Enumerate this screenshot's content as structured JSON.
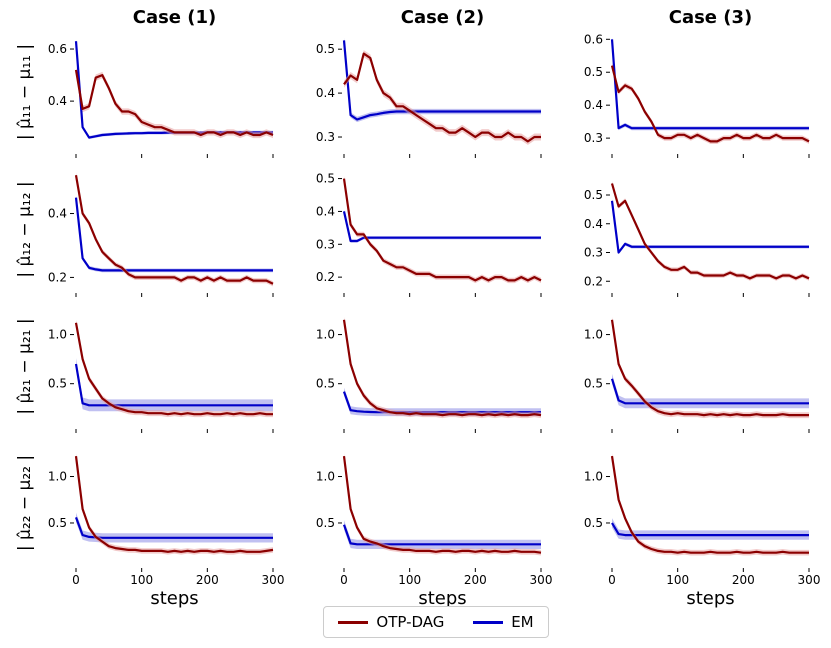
{
  "colors": {
    "otp": "#8b0000",
    "otp_band": "#e8a0a0",
    "em": "#0000c8",
    "em_band": "#8c8ce6"
  },
  "chart_data": {
    "type": "line",
    "column_titles": [
      "Case (1)",
      "Case (2)",
      "Case (3)"
    ],
    "row_labels": [
      "| μ̂₁₁ − μ₁₁ |",
      "| μ̂₁₂ − μ₁₂ |",
      "| μ̂₂₁ − μ₂₁ |",
      "| μ̂₂₂ − μ₂₂ |"
    ],
    "xlabel": "steps",
    "xlim": [
      0,
      300
    ],
    "xticks": [
      0,
      100,
      200,
      300
    ],
    "legend": [
      "OTP-DAG",
      "EM"
    ],
    "legend_position": "bottom-center",
    "panels": [
      [
        {
          "ylim": [
            0.22,
            0.65
          ],
          "yticks": [
            0.4,
            0.6
          ],
          "ytick_labels": [
            "0.4",
            "0.6"
          ],
          "otp": [
            0.52,
            0.37,
            0.38,
            0.49,
            0.5,
            0.45,
            0.39,
            0.36,
            0.36,
            0.35,
            0.32,
            0.31,
            0.3,
            0.3,
            0.29,
            0.28,
            0.28,
            0.28,
            0.28,
            0.27,
            0.28,
            0.28,
            0.27,
            0.28,
            0.28,
            0.27,
            0.28,
            0.27,
            0.27,
            0.28,
            0.27
          ],
          "em": [
            0.63,
            0.3,
            0.26,
            0.265,
            0.27,
            0.272,
            0.274,
            0.275,
            0.276,
            0.277,
            0.277,
            0.278,
            0.278,
            0.278,
            0.279,
            0.279,
            0.279,
            0.279,
            0.279,
            0.279,
            0.28,
            0.28,
            0.28,
            0.28,
            0.28,
            0.28,
            0.28,
            0.28,
            0.28,
            0.28,
            0.28
          ],
          "otp_band": 0.012,
          "em_band": 0.006
        },
        {
          "ylim": [
            0.275,
            0.53
          ],
          "yticks": [
            0.3,
            0.4,
            0.5
          ],
          "ytick_labels": [
            "0.3",
            "0.4",
            "0.5"
          ],
          "otp": [
            0.42,
            0.44,
            0.43,
            0.49,
            0.48,
            0.43,
            0.4,
            0.39,
            0.37,
            0.37,
            0.36,
            0.35,
            0.34,
            0.33,
            0.32,
            0.32,
            0.31,
            0.31,
            0.32,
            0.31,
            0.3,
            0.31,
            0.31,
            0.3,
            0.3,
            0.31,
            0.3,
            0.3,
            0.29,
            0.3,
            0.3
          ],
          "em": [
            0.52,
            0.35,
            0.34,
            0.345,
            0.35,
            0.352,
            0.355,
            0.357,
            0.358,
            0.358,
            0.358,
            0.358,
            0.358,
            0.358,
            0.358,
            0.358,
            0.358,
            0.358,
            0.358,
            0.358,
            0.358,
            0.358,
            0.358,
            0.358,
            0.358,
            0.358,
            0.358,
            0.358,
            0.358,
            0.358,
            0.358
          ],
          "otp_band": 0.008,
          "em_band": 0.006
        },
        {
          "ylim": [
            0.27,
            0.61
          ],
          "yticks": [
            0.3,
            0.4,
            0.5,
            0.6
          ],
          "ytick_labels": [
            "0.3",
            "0.4",
            "0.5",
            "0.6"
          ],
          "otp": [
            0.52,
            0.44,
            0.46,
            0.45,
            0.42,
            0.38,
            0.35,
            0.31,
            0.3,
            0.3,
            0.31,
            0.31,
            0.3,
            0.31,
            0.3,
            0.29,
            0.29,
            0.3,
            0.3,
            0.31,
            0.3,
            0.3,
            0.31,
            0.3,
            0.3,
            0.31,
            0.3,
            0.3,
            0.3,
            0.3,
            0.29
          ],
          "em": [
            0.6,
            0.33,
            0.34,
            0.33,
            0.33,
            0.33,
            0.33,
            0.33,
            0.33,
            0.33,
            0.33,
            0.33,
            0.33,
            0.33,
            0.33,
            0.33,
            0.33,
            0.33,
            0.33,
            0.33,
            0.33,
            0.33,
            0.33,
            0.33,
            0.33,
            0.33,
            0.33,
            0.33,
            0.33,
            0.33,
            0.33
          ],
          "otp_band": 0.008,
          "em_band": 0.006
        }
      ],
      [
        {
          "ylim": [
            0.17,
            0.53
          ],
          "yticks": [
            0.2,
            0.4
          ],
          "ytick_labels": [
            "0.2",
            "0.4"
          ],
          "otp": [
            0.52,
            0.4,
            0.37,
            0.32,
            0.28,
            0.26,
            0.24,
            0.23,
            0.21,
            0.2,
            0.2,
            0.2,
            0.2,
            0.2,
            0.2,
            0.2,
            0.19,
            0.2,
            0.2,
            0.19,
            0.2,
            0.19,
            0.2,
            0.19,
            0.19,
            0.19,
            0.2,
            0.19,
            0.19,
            0.19,
            0.18
          ],
          "em": [
            0.45,
            0.26,
            0.23,
            0.225,
            0.222,
            0.222,
            0.222,
            0.222,
            0.222,
            0.222,
            0.222,
            0.222,
            0.222,
            0.222,
            0.222,
            0.222,
            0.222,
            0.222,
            0.222,
            0.222,
            0.222,
            0.222,
            0.222,
            0.222,
            0.222,
            0.222,
            0.222,
            0.222,
            0.222,
            0.222,
            0.222
          ],
          "otp_band": 0.008,
          "em_band": 0.006
        },
        {
          "ylim": [
            0.17,
            0.52
          ],
          "yticks": [
            0.2,
            0.3,
            0.4,
            0.5
          ],
          "ytick_labels": [
            "0.2",
            "0.3",
            "0.4",
            "0.5"
          ],
          "otp": [
            0.5,
            0.36,
            0.33,
            0.33,
            0.3,
            0.28,
            0.25,
            0.24,
            0.23,
            0.23,
            0.22,
            0.21,
            0.21,
            0.21,
            0.2,
            0.2,
            0.2,
            0.2,
            0.2,
            0.2,
            0.19,
            0.2,
            0.19,
            0.2,
            0.2,
            0.19,
            0.19,
            0.2,
            0.19,
            0.2,
            0.19
          ],
          "em": [
            0.4,
            0.31,
            0.31,
            0.32,
            0.32,
            0.32,
            0.32,
            0.32,
            0.32,
            0.32,
            0.32,
            0.32,
            0.32,
            0.32,
            0.32,
            0.32,
            0.32,
            0.32,
            0.32,
            0.32,
            0.32,
            0.32,
            0.32,
            0.32,
            0.32,
            0.32,
            0.32,
            0.32,
            0.32,
            0.32,
            0.32
          ],
          "otp_band": 0.008,
          "em_band": 0.005
        },
        {
          "ylim": [
            0.18,
            0.58
          ],
          "yticks": [
            0.2,
            0.3,
            0.4,
            0.5
          ],
          "ytick_labels": [
            "0.2",
            "0.3",
            "0.4",
            "0.5"
          ],
          "otp": [
            0.54,
            0.46,
            0.48,
            0.43,
            0.38,
            0.33,
            0.3,
            0.27,
            0.25,
            0.24,
            0.24,
            0.25,
            0.23,
            0.23,
            0.22,
            0.22,
            0.22,
            0.22,
            0.23,
            0.22,
            0.22,
            0.21,
            0.22,
            0.22,
            0.22,
            0.21,
            0.22,
            0.22,
            0.21,
            0.22,
            0.21
          ],
          "em": [
            0.48,
            0.3,
            0.33,
            0.32,
            0.32,
            0.32,
            0.32,
            0.32,
            0.32,
            0.32,
            0.32,
            0.32,
            0.32,
            0.32,
            0.32,
            0.32,
            0.32,
            0.32,
            0.32,
            0.32,
            0.32,
            0.32,
            0.32,
            0.32,
            0.32,
            0.32,
            0.32,
            0.32,
            0.32,
            0.32,
            0.32
          ],
          "otp_band": 0.008,
          "em_band": 0.006
        }
      ],
      [
        {
          "ylim": [
            0.1,
            1.25
          ],
          "yticks": [
            0.5,
            1.0
          ],
          "ytick_labels": [
            "0.5",
            "1.0"
          ],
          "otp": [
            1.12,
            0.75,
            0.55,
            0.45,
            0.35,
            0.3,
            0.26,
            0.24,
            0.22,
            0.21,
            0.21,
            0.2,
            0.2,
            0.2,
            0.19,
            0.2,
            0.19,
            0.2,
            0.19,
            0.19,
            0.2,
            0.19,
            0.19,
            0.2,
            0.19,
            0.2,
            0.19,
            0.19,
            0.2,
            0.19,
            0.19
          ],
          "em": [
            0.7,
            0.3,
            0.28,
            0.28,
            0.28,
            0.28,
            0.28,
            0.28,
            0.28,
            0.28,
            0.28,
            0.28,
            0.28,
            0.28,
            0.28,
            0.28,
            0.28,
            0.28,
            0.28,
            0.28,
            0.28,
            0.28,
            0.28,
            0.28,
            0.28,
            0.28,
            0.28,
            0.28,
            0.28,
            0.28,
            0.28
          ],
          "otp_band": 0.03,
          "em_band": 0.06
        },
        {
          "ylim": [
            0.1,
            1.25
          ],
          "yticks": [
            0.5,
            1.0
          ],
          "ytick_labels": [
            "0.5",
            "1.0"
          ],
          "otp": [
            1.15,
            0.7,
            0.5,
            0.38,
            0.3,
            0.25,
            0.23,
            0.21,
            0.2,
            0.2,
            0.19,
            0.2,
            0.19,
            0.19,
            0.19,
            0.18,
            0.19,
            0.19,
            0.18,
            0.19,
            0.19,
            0.18,
            0.19,
            0.18,
            0.19,
            0.18,
            0.19,
            0.18,
            0.18,
            0.19,
            0.18
          ],
          "em": [
            0.42,
            0.23,
            0.22,
            0.215,
            0.212,
            0.21,
            0.21,
            0.21,
            0.21,
            0.21,
            0.21,
            0.21,
            0.21,
            0.21,
            0.21,
            0.21,
            0.21,
            0.21,
            0.21,
            0.21,
            0.21,
            0.21,
            0.21,
            0.21,
            0.21,
            0.21,
            0.21,
            0.21,
            0.21,
            0.21,
            0.21
          ],
          "otp_band": 0.03,
          "em_band": 0.04
        },
        {
          "ylim": [
            0.1,
            1.25
          ],
          "yticks": [
            0.5,
            1.0
          ],
          "ytick_labels": [
            "0.5",
            "1.0"
          ],
          "otp": [
            1.15,
            0.7,
            0.55,
            0.48,
            0.4,
            0.32,
            0.26,
            0.22,
            0.2,
            0.19,
            0.2,
            0.19,
            0.19,
            0.19,
            0.18,
            0.19,
            0.18,
            0.19,
            0.18,
            0.19,
            0.18,
            0.18,
            0.19,
            0.18,
            0.18,
            0.18,
            0.19,
            0.18,
            0.18,
            0.18,
            0.18
          ],
          "em": [
            0.55,
            0.33,
            0.3,
            0.3,
            0.3,
            0.3,
            0.3,
            0.3,
            0.3,
            0.3,
            0.3,
            0.3,
            0.3,
            0.3,
            0.3,
            0.3,
            0.3,
            0.3,
            0.3,
            0.3,
            0.3,
            0.3,
            0.3,
            0.3,
            0.3,
            0.3,
            0.3,
            0.3,
            0.3,
            0.3,
            0.3
          ],
          "otp_band": 0.03,
          "em_band": 0.05
        }
      ],
      [
        {
          "ylim": [
            0.08,
            1.35
          ],
          "yticks": [
            0.5,
            1.0
          ],
          "ytick_labels": [
            "0.5",
            "1.0"
          ],
          "otp": [
            1.22,
            0.65,
            0.45,
            0.35,
            0.3,
            0.25,
            0.23,
            0.22,
            0.21,
            0.21,
            0.2,
            0.2,
            0.2,
            0.2,
            0.19,
            0.2,
            0.19,
            0.2,
            0.19,
            0.2,
            0.2,
            0.19,
            0.2,
            0.19,
            0.19,
            0.2,
            0.19,
            0.19,
            0.19,
            0.2,
            0.21
          ],
          "em": [
            0.56,
            0.37,
            0.35,
            0.345,
            0.34,
            0.34,
            0.34,
            0.34,
            0.34,
            0.34,
            0.34,
            0.34,
            0.34,
            0.34,
            0.34,
            0.34,
            0.34,
            0.34,
            0.34,
            0.34,
            0.34,
            0.34,
            0.34,
            0.34,
            0.34,
            0.34,
            0.34,
            0.34,
            0.34,
            0.34,
            0.34
          ],
          "otp_band": 0.03,
          "em_band": 0.05
        },
        {
          "ylim": [
            0.08,
            1.35
          ],
          "yticks": [
            0.5,
            1.0
          ],
          "ytick_labels": [
            "0.5",
            "1.0"
          ],
          "otp": [
            1.22,
            0.65,
            0.45,
            0.33,
            0.3,
            0.28,
            0.25,
            0.23,
            0.22,
            0.21,
            0.21,
            0.2,
            0.2,
            0.2,
            0.19,
            0.2,
            0.2,
            0.19,
            0.2,
            0.2,
            0.19,
            0.2,
            0.19,
            0.2,
            0.19,
            0.19,
            0.2,
            0.19,
            0.19,
            0.19,
            0.18
          ],
          "em": [
            0.48,
            0.28,
            0.27,
            0.27,
            0.27,
            0.27,
            0.27,
            0.27,
            0.27,
            0.27,
            0.27,
            0.27,
            0.27,
            0.27,
            0.27,
            0.27,
            0.27,
            0.27,
            0.27,
            0.27,
            0.27,
            0.27,
            0.27,
            0.27,
            0.27,
            0.27,
            0.27,
            0.27,
            0.27,
            0.27,
            0.27
          ],
          "otp_band": 0.03,
          "em_band": 0.05
        },
        {
          "ylim": [
            0.08,
            1.35
          ],
          "yticks": [
            0.5,
            1.0
          ],
          "ytick_labels": [
            "0.5",
            "1.0"
          ],
          "otp": [
            1.22,
            0.75,
            0.55,
            0.4,
            0.3,
            0.25,
            0.22,
            0.2,
            0.19,
            0.19,
            0.18,
            0.19,
            0.18,
            0.18,
            0.18,
            0.19,
            0.18,
            0.18,
            0.18,
            0.19,
            0.18,
            0.18,
            0.19,
            0.18,
            0.18,
            0.18,
            0.19,
            0.18,
            0.18,
            0.18,
            0.18
          ],
          "em": [
            0.5,
            0.38,
            0.37,
            0.37,
            0.37,
            0.37,
            0.37,
            0.37,
            0.37,
            0.37,
            0.37,
            0.37,
            0.37,
            0.37,
            0.37,
            0.37,
            0.37,
            0.37,
            0.37,
            0.37,
            0.37,
            0.37,
            0.37,
            0.37,
            0.37,
            0.37,
            0.37,
            0.37,
            0.37,
            0.37,
            0.37
          ],
          "otp_band": 0.03,
          "em_band": 0.05
        }
      ]
    ]
  }
}
